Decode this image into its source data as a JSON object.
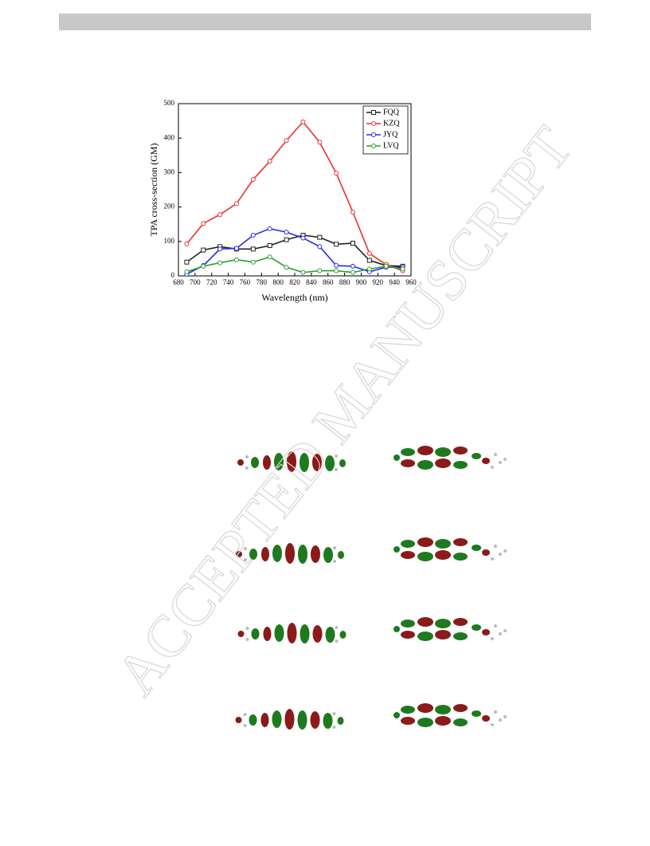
{
  "watermark": "ACCEPTED MANUSCRIPT",
  "chart_data": {
    "type": "line",
    "xlabel": "Wavelength (nm)",
    "ylabel": "TPA cross-section (GM)",
    "x": [
      690,
      710,
      730,
      750,
      770,
      790,
      810,
      830,
      850,
      870,
      890,
      910,
      930,
      950
    ],
    "series": [
      {
        "name": "FQQ",
        "color": "#222222",
        "marker": "square",
        "values": [
          40,
          75,
          85,
          78,
          78,
          88,
          105,
          118,
          112,
          92,
          95,
          45,
          30,
          28
        ]
      },
      {
        "name": "KZQ",
        "color": "#e8322f",
        "marker": "circle",
        "values": [
          93,
          152,
          178,
          210,
          280,
          333,
          393,
          447,
          388,
          298,
          185,
          65,
          33,
          15
        ]
      },
      {
        "name": "JYQ",
        "color": "#2a2ae8",
        "marker": "circle",
        "values": [
          5,
          30,
          78,
          80,
          118,
          137,
          127,
          110,
          85,
          30,
          28,
          12,
          25,
          25
        ]
      },
      {
        "name": "LVQ",
        "color": "#2aa02a",
        "marker": "circle",
        "values": [
          12,
          28,
          38,
          47,
          40,
          55,
          25,
          10,
          15,
          15,
          10,
          20,
          28,
          20
        ]
      }
    ],
    "xlim": [
      680,
      960
    ],
    "xticks": [
      680,
      700,
      720,
      740,
      760,
      780,
      800,
      820,
      840,
      860,
      880,
      900,
      920,
      940,
      960
    ],
    "ylim": [
      0,
      500
    ],
    "yticks": [
      0,
      100,
      200,
      300,
      400,
      500
    ],
    "legend": "upper right"
  }
}
